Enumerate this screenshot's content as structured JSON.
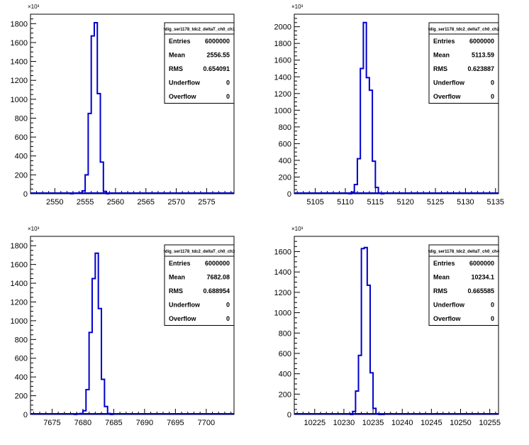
{
  "chart_data": [
    {
      "type": "histogram",
      "title": "tdig_ser1178_tdc2_deltaT_ch0_ch1",
      "xlim": [
        2546,
        2579.5
      ],
      "ylim": [
        0,
        1900
      ],
      "y_exponent": "×10³",
      "x_ticks": [
        "2550",
        "2555",
        "2560",
        "2565",
        "2570",
        "2575"
      ],
      "y_ticks": [
        "0",
        "200",
        "400",
        "600",
        "800",
        "1000",
        "1200",
        "1400",
        "1600",
        "1800"
      ],
      "bin_width": 0.5,
      "bins_x": [
        2552.5,
        2553.0,
        2553.5,
        2554.0,
        2554.5,
        2555.0,
        2555.5,
        2556.0,
        2556.5,
        2557.0,
        2557.5,
        2558.0,
        2558.5
      ],
      "bins_y": [
        0,
        5,
        5,
        10,
        30,
        200,
        850,
        1670,
        1810,
        1060,
        335,
        25,
        0
      ],
      "stats": {
        "Entries": "6000000",
        "Mean": "2556.55",
        "RMS": "0.654091",
        "Underflow": "0",
        "Overflow": "0"
      }
    },
    {
      "type": "histogram",
      "title": "tdig_ser1178_tdc2_deltaT_ch0_ch2",
      "xlim": [
        5101.5,
        5135.5
      ],
      "ylim": [
        0,
        2150
      ],
      "y_exponent": "×10³",
      "x_ticks": [
        "5105",
        "5110",
        "5115",
        "5120",
        "5125",
        "5130",
        "5135"
      ],
      "y_ticks": [
        "0",
        "200",
        "400",
        "600",
        "800",
        "1000",
        "1200",
        "1400",
        "1600",
        "1800",
        "2000"
      ],
      "bin_width": 0.5,
      "bins_x": [
        5110.5,
        5111.0,
        5111.5,
        5112.0,
        5112.5,
        5113.0,
        5113.5,
        5114.0,
        5114.5,
        5115.0,
        5115.5,
        5116.0
      ],
      "bins_y": [
        0,
        20,
        110,
        420,
        1500,
        2050,
        1390,
        1240,
        390,
        75,
        5,
        0
      ],
      "stats": {
        "Entries": "6000000",
        "Mean": "5113.59",
        "RMS": "0.623887",
        "Underflow": "0",
        "Overflow": "0"
      }
    },
    {
      "type": "histogram",
      "title": "tdig_ser1178_tdc2_deltaT_ch0_ch3",
      "xlim": [
        7671.5,
        7704.5
      ],
      "ylim": [
        0,
        1900
      ],
      "y_exponent": "×10³",
      "x_ticks": [
        "7675",
        "7680",
        "7685",
        "7690",
        "7695",
        "7700"
      ],
      "y_ticks": [
        "0",
        "200",
        "400",
        "600",
        "800",
        "1000",
        "1200",
        "1400",
        "1600",
        "1800"
      ],
      "bin_width": 0.5,
      "bins_x": [
        7678.5,
        7679.0,
        7679.5,
        7680.0,
        7680.5,
        7681.0,
        7681.5,
        7682.0,
        7682.5,
        7683.0,
        7683.5,
        7684.0,
        7684.5
      ],
      "bins_y": [
        0,
        5,
        10,
        40,
        265,
        875,
        1450,
        1720,
        1130,
        375,
        85,
        10,
        0
      ],
      "stats": {
        "Entries": "6000000",
        "Mean": "7682.08",
        "RMS": "0.688954",
        "Underflow": "0",
        "Overflow": "0"
      }
    },
    {
      "type": "histogram",
      "title": "tdig_ser1178_tdc2_deltaT_ch0_ch4",
      "xlim": [
        10221.5,
        10256.5
      ],
      "ylim": [
        0,
        1750
      ],
      "y_exponent": "×10³",
      "x_ticks": [
        "10225",
        "10230",
        "10235",
        "10240",
        "10245",
        "10250",
        "10255"
      ],
      "y_ticks": [
        "0",
        "200",
        "400",
        "600",
        "800",
        "1000",
        "1200",
        "1400",
        "1600"
      ],
      "bin_width": 0.5,
      "bins_x": [
        10231.0,
        10231.5,
        10232.0,
        10232.5,
        10233.0,
        10233.5,
        10234.0,
        10234.5,
        10235.0,
        10235.5,
        10236.0,
        10236.5
      ],
      "bins_y": [
        0,
        30,
        230,
        580,
        1630,
        1640,
        1270,
        410,
        60,
        5,
        0,
        0
      ],
      "stats": {
        "Entries": "6000000",
        "Mean": "10234.1",
        "RMS": "0.665585",
        "Underflow": "0",
        "Overflow": "0"
      }
    }
  ],
  "stat_labels": [
    "Entries",
    "Mean",
    "RMS",
    "Underflow",
    "Overflow"
  ],
  "colors": {
    "line": "#0000cc",
    "axis": "#000000",
    "background": "#ffffff"
  }
}
